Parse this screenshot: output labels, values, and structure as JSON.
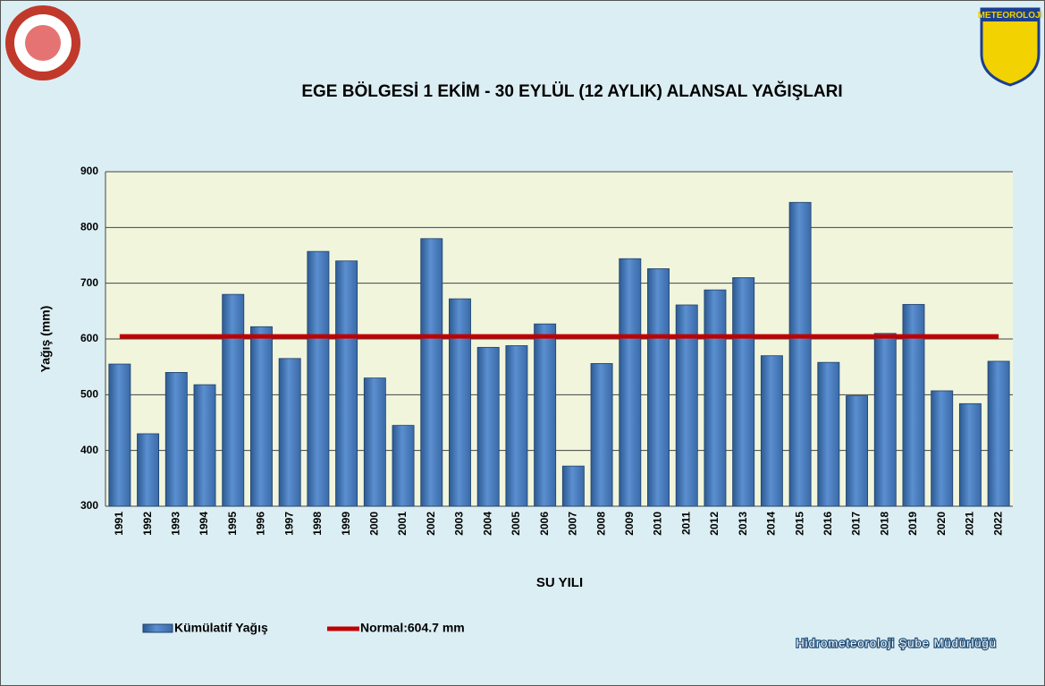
{
  "chart_data": {
    "type": "bar",
    "title": "EGE BÖLGESİ  1 EKİM - 30 EYLÜL (12 AYLIK) ALANSAL YAĞIŞLARI",
    "x_label": "SU YILI",
    "y_label": "Yağış (mm)",
    "categories": [
      "1991",
      "1992",
      "1993",
      "1994",
      "1995",
      "1996",
      "1997",
      "1998",
      "1999",
      "2000",
      "2001",
      "2002",
      "2003",
      "2004",
      "2005",
      "2006",
      "2007",
      "2008",
      "2009",
      "2010",
      "2011",
      "2012",
      "2013",
      "2014",
      "2015",
      "2016",
      "2017",
      "2018",
      "2019",
      "2020",
      "2021",
      "2022"
    ],
    "series": [
      {
        "name": "Kümülatif Yağış",
        "color": "#4f81bd",
        "values": [
          555,
          430,
          540,
          518,
          680,
          622,
          565,
          757,
          740,
          530,
          445,
          780,
          672,
          585,
          588,
          627,
          372,
          556,
          744,
          726,
          661,
          688,
          710,
          570,
          845,
          558,
          498,
          610,
          662,
          507,
          484,
          560
        ]
      }
    ],
    "normal": {
      "name": "Normal:604.7 mm",
      "value": 604.7,
      "color": "#c00000"
    },
    "ylim": [
      300,
      900
    ],
    "yticks": [
      300,
      400,
      500,
      600,
      700,
      800,
      900
    ],
    "grid": true,
    "footer": "Hidrometeoroloji Şube Müdürlüğü",
    "logo_text": "METEOROLOJİ"
  }
}
